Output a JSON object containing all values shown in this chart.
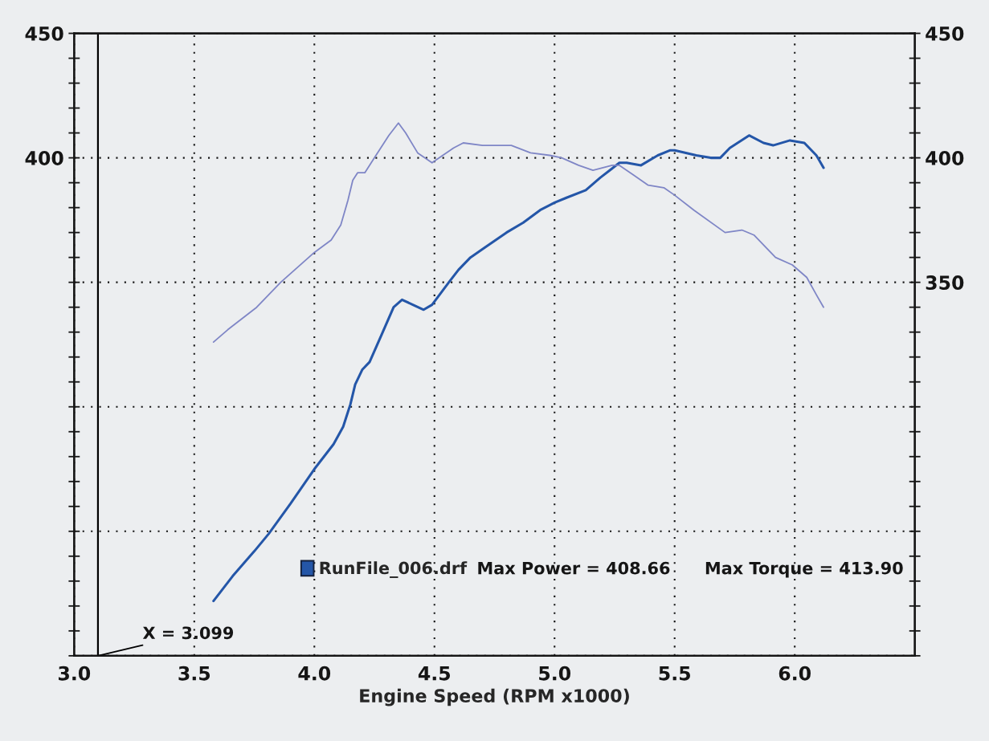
{
  "chart_data": {
    "type": "line",
    "xlabel": "Engine Speed (RPM x1000)",
    "xlim": [
      3.0,
      6.5
    ],
    "xticks": [
      {
        "value": 3,
        "label": "3.0"
      },
      3.5,
      {
        "value": 4,
        "label": "4.0"
      },
      4.5,
      {
        "value": 5,
        "label": "5.0"
      },
      5.5,
      {
        "value": 6,
        "label": "6.0"
      }
    ],
    "ylim": [
      200,
      450
    ],
    "yticks": [
      {
        "value": 200,
        "label": null
      },
      {
        "value": 250,
        "label": null
      },
      {
        "value": 300,
        "label": null
      },
      {
        "value": 350,
        "label": null
      },
      400,
      450
    ],
    "y2lim": [
      200,
      450
    ],
    "y2ticks": [
      {
        "value": 200,
        "label": null
      },
      {
        "value": 250,
        "label": null
      },
      {
        "value": 300,
        "label": null
      },
      350,
      400,
      450
    ],
    "grid": true,
    "legend": "bottom",
    "line_style": "solid",
    "series": [
      {
        "name": "RunFile_006.drf",
        "color": "#2456a8",
        "x": [
          3.58,
          3.66,
          3.75,
          3.81,
          3.9,
          4.0,
          4.08,
          4.12,
          4.15,
          4.17,
          4.2,
          4.23,
          4.28,
          4.33,
          4.365,
          4.41,
          4.455,
          4.49,
          4.56,
          4.6,
          4.65,
          4.71,
          4.8,
          4.87,
          4.94,
          5.0,
          5.05,
          5.13,
          5.19,
          5.27,
          5.3,
          5.36,
          5.43,
          5.48,
          5.5,
          5.59,
          5.65,
          5.69,
          5.73,
          5.81,
          5.87,
          5.91,
          5.98,
          6.04,
          6.09,
          6.12
        ],
        "values": [
          222,
          232,
          242,
          249,
          261,
          275,
          285,
          292,
          301,
          309,
          315,
          318,
          329,
          340,
          343,
          341,
          339,
          341,
          350,
          355,
          360,
          364,
          370,
          374,
          379,
          382,
          384,
          387,
          392,
          398,
          398,
          397,
          401,
          403,
          403,
          401,
          400,
          400,
          404,
          409,
          406,
          405,
          407,
          406,
          401,
          396
        ]
      },
      {
        "color": "#7f86c6",
        "x": [
          3.58,
          3.64,
          3.76,
          3.86,
          4.0,
          4.07,
          4.11,
          4.14,
          4.16,
          4.18,
          4.21,
          4.25,
          4.31,
          4.35,
          4.38,
          4.43,
          4.49,
          4.52,
          4.58,
          4.62,
          4.7,
          4.78,
          4.82,
          4.9,
          4.98,
          5.03,
          5.1,
          5.16,
          5.24,
          5.27,
          5.33,
          5.39,
          5.455,
          5.5,
          5.58,
          5.71,
          5.78,
          5.83,
          5.92,
          5.99,
          6.05,
          6.09,
          6.12
        ],
        "values": [
          326,
          331,
          340,
          350,
          362,
          367,
          373,
          383,
          391,
          394,
          394,
          400,
          409,
          414,
          410,
          402,
          398,
          400,
          404,
          406,
          405,
          405,
          405,
          402,
          401,
          400,
          397,
          395,
          397,
          397,
          393,
          389,
          388,
          385,
          379,
          370,
          371,
          369,
          360,
          357,
          352,
          345,
          340
        ]
      }
    ],
    "ref_lines": [
      {
        "axis": "x",
        "value": 3.099,
        "label": "X = 3.099",
        "color": "#000000"
      }
    ],
    "annotations": [
      "Max Power = 408.66",
      "Max Torque = 413.90"
    ]
  }
}
